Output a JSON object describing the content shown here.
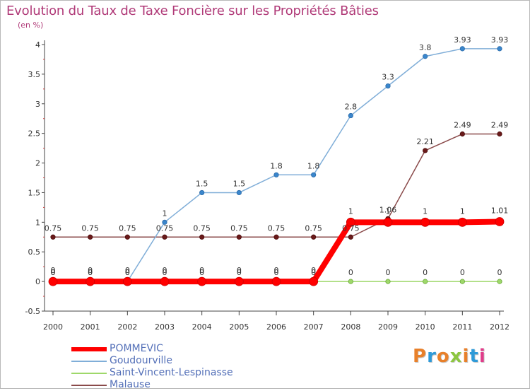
{
  "header": {
    "title": "Evolution du Taux de Taxe Foncière sur les Propriétés Bâties",
    "subtitle": "(en %)"
  },
  "brand": {
    "text": "Proxiti",
    "colors": [
      "#e8802a",
      "#2e9ad8",
      "#e8802a",
      "#8cc63f",
      "#e8802a",
      "#2e9ad8",
      "#e03c8a"
    ]
  },
  "chart_data": {
    "type": "line",
    "title": "Evolution du Taux de Taxe Foncière sur les Propriétés Bâties",
    "ylabel": "(en %)",
    "xlabel": "",
    "ylim": [
      -0.5,
      4
    ],
    "y_ticks": [
      "-0.5",
      "0",
      "0.5",
      "1",
      "1.5",
      "2",
      "2.5",
      "3",
      "3.5",
      "4"
    ],
    "y_tick_values": [
      -0.5,
      0,
      0.5,
      1,
      1.5,
      2,
      2.5,
      3,
      3.5,
      4
    ],
    "categories": [
      "2000",
      "2001",
      "2002",
      "2003",
      "2004",
      "2005",
      "2006",
      "2007",
      "2008",
      "2009",
      "2010",
      "2011",
      "2012"
    ],
    "series": [
      {
        "name": "POMMEVIC",
        "color": "#ff0000",
        "values": [
          0,
          0,
          0,
          0,
          0,
          0,
          0,
          0,
          1,
          1,
          1,
          1,
          1.01
        ],
        "labels": [
          "0",
          "0",
          "0",
          "0",
          "0",
          "0",
          "0",
          "0",
          "1",
          "1",
          "1",
          "1",
          "1.01"
        ]
      },
      {
        "name": "Goudourville",
        "color": "#80aed8",
        "values": [
          0,
          0,
          0,
          1,
          1.5,
          1.5,
          1.8,
          1.8,
          2.8,
          3.3,
          3.8,
          3.93,
          3.93
        ],
        "labels": [
          "0",
          "0",
          "0",
          "1",
          "1.5",
          "1.5",
          "1.8",
          "1.8",
          "2.8",
          "3.3",
          "3.8",
          "3.93",
          "3.93"
        ]
      },
      {
        "name": "Saint-Vincent-Lespinasse",
        "color": "#9ed86a",
        "values": [
          0,
          0,
          0,
          0,
          0,
          0,
          0,
          0,
          0,
          0,
          0,
          0,
          0
        ],
        "labels": [
          "0",
          "0",
          "0",
          "0",
          "0",
          "0",
          "0",
          "0",
          "0",
          "0",
          "0",
          "0",
          "0"
        ]
      },
      {
        "name": "Malause",
        "color": "#8a4a4a",
        "values": [
          0.75,
          0.75,
          0.75,
          0.75,
          0.75,
          0.75,
          0.75,
          0.75,
          0.75,
          1.06,
          2.21,
          2.49,
          2.49
        ],
        "labels": [
          "0.75",
          "0.75",
          "0.75",
          "0.75",
          "0.75",
          "0.75",
          "0.75",
          "0.75",
          "0.75",
          "1.06",
          "2.21",
          "2.49",
          "2.49"
        ]
      }
    ]
  },
  "legend": {
    "items": [
      {
        "label": "POMMEVIC",
        "color": "#ff0000"
      },
      {
        "label": "Goudourville",
        "color": "#80aed8"
      },
      {
        "label": "Saint-Vincent-Lespinasse",
        "color": "#9ed86a"
      },
      {
        "label": "Malause",
        "color": "#8a4a4a"
      }
    ]
  }
}
